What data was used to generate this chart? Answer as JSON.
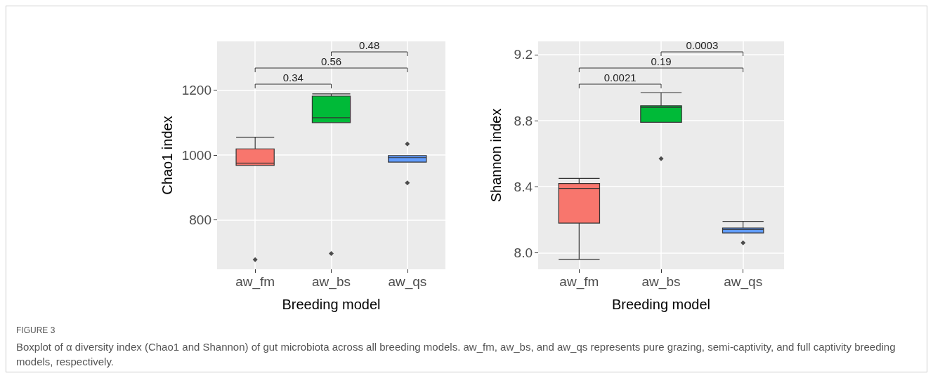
{
  "chart_data": [
    {
      "type": "box",
      "categories": [
        "aw_fm",
        "aw_bs",
        "aw_qs"
      ],
      "colors": [
        "#f8766d",
        "#00ba38",
        "#619cff"
      ],
      "xlabel": "Breeding model",
      "ylabel": "Chao1 index",
      "ylim": [
        647,
        1351
      ],
      "yticks": [
        800,
        1000,
        1200
      ],
      "grid": true,
      "boxes": [
        {
          "low": 968,
          "q1": 968,
          "median": 975,
          "q3": 1019,
          "high": 1055,
          "outliers": [
            677
          ]
        },
        {
          "low": 1100,
          "q1": 1100,
          "median": 1115,
          "q3": 1182,
          "high": 1189,
          "outliers": [
            696
          ]
        },
        {
          "low": 978,
          "q1": 978,
          "median": 992,
          "q3": 998,
          "high": 998,
          "outliers": [
            1034,
            914
          ]
        }
      ],
      "annotations": [
        "0.48",
        "0.56",
        "0.34"
      ]
    },
    {
      "type": "box",
      "categories": [
        "aw_fm",
        "aw_bs",
        "aw_qs"
      ],
      "colors": [
        "#f8766d",
        "#00ba38",
        "#619cff"
      ],
      "xlabel": "Breeding model",
      "ylabel": "Shannon index",
      "ylim": [
        7.9,
        9.28
      ],
      "yticks": [
        {
          "value": 8,
          "label": "8.0"
        },
        8.4,
        8.8,
        9.2
      ],
      "grid": true,
      "boxes": [
        {
          "low": 7.96,
          "q1": 8.18,
          "median": 8.39,
          "q3": 8.42,
          "high": 8.45
        },
        {
          "low": 8.79,
          "q1": 8.79,
          "median": 8.88,
          "q3": 8.89,
          "high": 8.97,
          "outliers": [
            8.57
          ]
        },
        {
          "low": 8.12,
          "q1": 8.12,
          "median": 8.14,
          "q3": 8.15,
          "high": 8.19,
          "outliers": [
            8.06
          ]
        }
      ],
      "annotations": [
        "0.0003",
        "0.19",
        "0.0021"
      ]
    },
    {
      "type": "other",
      "title": "FIGURE 3",
      "annotations": [
        "Boxplot of α diversity index (Chao1 and Shannon) of gut microbiota across all breeding models. aw_fm, aw_bs, and aw_qs represents pure grazing, semi-captivity, and full captivity breeding models, respectively."
      ]
    }
  ]
}
